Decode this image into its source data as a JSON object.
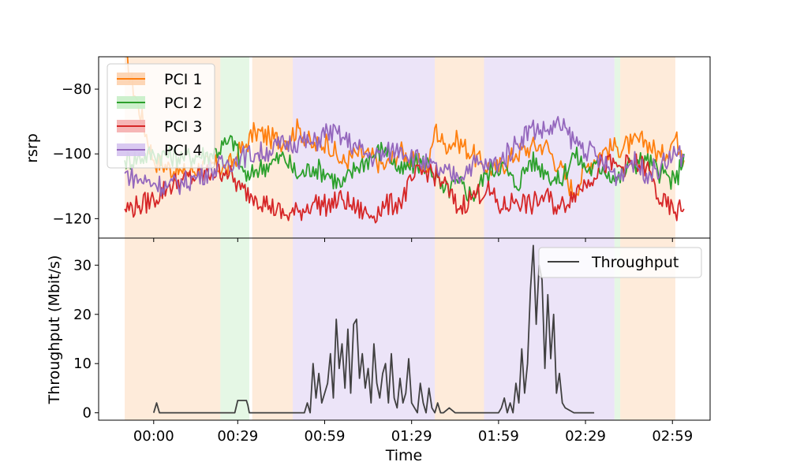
{
  "chart_data": {
    "type": "line",
    "xlabel": "Time",
    "x_tick_labels": [
      "00:00",
      "00:29",
      "00:59",
      "01:29",
      "01:59",
      "02:29",
      "02:59"
    ],
    "x_tick_seconds": [
      0,
      29,
      59,
      89,
      119,
      149,
      179
    ],
    "xlim_seconds": [
      -19,
      192
    ],
    "serving_cell_bands": [
      {
        "pci": "PCI 1",
        "start": -10,
        "end": 23
      },
      {
        "pci": "PCI 2",
        "start": 23,
        "end": 33
      },
      {
        "pci": "PCI 1",
        "start": 34,
        "end": 48
      },
      {
        "pci": "PCI 4",
        "start": 48,
        "end": 97
      },
      {
        "pci": "PCI 1",
        "start": 97,
        "end": 114
      },
      {
        "pci": "PCI 4",
        "start": 114,
        "end": 159
      },
      {
        "pci": "PCI 2",
        "start": 159,
        "end": 161
      },
      {
        "pci": "PCI 1",
        "start": 161,
        "end": 180
      }
    ],
    "top_panel": {
      "ylabel": "rsrp",
      "ylim": [
        -126,
        -70
      ],
      "yticks": [
        -80,
        -100,
        -120
      ],
      "legend_position": "upper-left",
      "series": [
        {
          "name": "PCI 1",
          "color": "#ff7f0e",
          "band_color": "#fdd2ae",
          "x": [
            -10,
            0,
            10,
            20,
            25,
            29,
            32,
            35,
            40,
            45,
            50,
            55,
            60,
            65,
            70,
            75,
            80,
            85,
            90,
            95,
            97,
            100,
            105,
            110,
            113,
            118,
            125,
            130,
            135,
            140,
            145,
            150,
            155,
            160,
            165,
            170,
            175,
            180,
            182,
            183
          ],
          "y": [
            -70,
            -102,
            -106,
            -103,
            -105,
            -100,
            -97,
            -93,
            -95,
            -96,
            -92,
            -98,
            -96,
            -103,
            -100,
            -101,
            -104,
            -99,
            -103,
            -104,
            -92,
            -97,
            -96,
            -100,
            -103,
            -105,
            -100,
            -98,
            -97,
            -104,
            -112,
            -103,
            -99,
            -98,
            -97,
            -96,
            -101,
            -95,
            -99,
            -102
          ]
        },
        {
          "name": "PCI 2",
          "color": "#2ca02c",
          "band_color": "#c6eec6",
          "x": [
            -10,
            0,
            10,
            20,
            25,
            28,
            30,
            33,
            35,
            40,
            45,
            50,
            55,
            60,
            65,
            70,
            75,
            80,
            85,
            90,
            95,
            100,
            105,
            110,
            115,
            120,
            125,
            130,
            135,
            140,
            145,
            150,
            155,
            160,
            165,
            170,
            175,
            180,
            183
          ],
          "y": [
            -102,
            -100,
            -101,
            -100,
            -97,
            -96,
            -104,
            -108,
            -105,
            -103,
            -101,
            -107,
            -104,
            -106,
            -110,
            -104,
            -101,
            -98,
            -106,
            -103,
            -103,
            -112,
            -109,
            -113,
            -106,
            -103,
            -110,
            -102,
            -105,
            -109,
            -100,
            -105,
            -104,
            -108,
            -103,
            -102,
            -106,
            -109,
            -100
          ]
        },
        {
          "name": "PCI 3",
          "color": "#d62728",
          "band_color": "#f5aeae",
          "x": [
            -10,
            -5,
            0,
            5,
            10,
            15,
            20,
            25,
            30,
            35,
            40,
            45,
            50,
            55,
            60,
            65,
            70,
            75,
            80,
            85,
            90,
            95,
            100,
            105,
            110,
            115,
            120,
            125,
            130,
            135,
            140,
            145,
            150,
            155,
            160,
            165,
            170,
            175,
            180,
            183
          ],
          "y": [
            -117,
            -116,
            -114,
            -110,
            -108,
            -107,
            -106,
            -105,
            -111,
            -113,
            -116,
            -119,
            -118,
            -115,
            -116,
            -114,
            -117,
            -119,
            -116,
            -115,
            -107,
            -105,
            -109,
            -117,
            -113,
            -111,
            -117,
            -114,
            -116,
            -113,
            -117,
            -112,
            -108,
            -103,
            -104,
            -103,
            -104,
            -115,
            -118,
            -117
          ]
        },
        {
          "name": "PCI 4",
          "color": "#9467bd",
          "band_color": "#d5c3ef",
          "x": [
            -10,
            -5,
            0,
            5,
            10,
            15,
            20,
            25,
            30,
            35,
            40,
            45,
            50,
            55,
            60,
            65,
            70,
            75,
            80,
            85,
            90,
            95,
            100,
            105,
            110,
            115,
            120,
            125,
            130,
            135,
            140,
            145,
            150,
            155,
            160,
            165,
            170,
            175,
            180,
            183
          ],
          "y": [
            -106,
            -108,
            -109,
            -110,
            -109,
            -107,
            -105,
            -103,
            -101,
            -100,
            -99,
            -97,
            -96,
            -97,
            -93,
            -95,
            -98,
            -101,
            -100,
            -98,
            -101,
            -104,
            -106,
            -107,
            -103,
            -104,
            -102,
            -97,
            -92,
            -93,
            -91,
            -96,
            -99,
            -103,
            -107,
            -102,
            -106,
            -104,
            -100,
            -101
          ]
        }
      ]
    },
    "bottom_panel": {
      "ylabel": "Throughput (Mbit/s)",
      "ylim": [
        -1.5,
        35.5
      ],
      "yticks": [
        0,
        10,
        20,
        30
      ],
      "legend_position": "upper-right",
      "series": [
        {
          "name": "Throughput",
          "color": "#404040",
          "x": [
            0,
            1,
            1.5,
            2,
            5,
            10,
            15,
            20,
            25,
            28,
            29,
            30,
            31,
            32,
            32.5,
            33,
            40,
            50,
            51,
            52,
            53,
            54,
            55,
            56,
            57,
            58,
            59,
            60,
            61,
            62,
            63,
            64,
            65,
            66,
            67,
            68,
            69,
            70,
            71,
            72,
            73,
            74,
            75,
            76,
            77,
            78,
            79,
            80,
            81,
            82,
            83,
            84,
            85,
            86,
            87,
            88,
            89,
            90,
            91,
            92,
            93,
            94,
            95,
            96,
            97,
            98,
            99,
            100,
            102,
            104,
            106,
            108,
            110,
            112,
            114,
            116,
            117,
            118,
            119,
            120,
            121,
            122,
            123,
            124,
            125,
            126,
            127,
            128,
            129,
            130,
            131,
            132,
            133,
            134,
            135,
            136,
            137,
            138,
            139,
            140,
            141,
            142,
            145,
            150,
            152
          ],
          "y": [
            0,
            2,
            1,
            0,
            0,
            0,
            0,
            0,
            0,
            0,
            2.5,
            2.5,
            2.5,
            2.5,
            1.5,
            0,
            0,
            0,
            0,
            0,
            2,
            0,
            10,
            3,
            8,
            2,
            4,
            6,
            12,
            3,
            19,
            9,
            14,
            5,
            17,
            4,
            18,
            19,
            7,
            12,
            5,
            9,
            2,
            14,
            6,
            3,
            8,
            10,
            2,
            12,
            3,
            1,
            7,
            2,
            4,
            11,
            2,
            1,
            0,
            6,
            2,
            0,
            5,
            1,
            0,
            2,
            0,
            0,
            1,
            0,
            0,
            0,
            0,
            0,
            0,
            0,
            0,
            0,
            0,
            1,
            3,
            0,
            2,
            0,
            6,
            2,
            13,
            4,
            10,
            25,
            34,
            18,
            30,
            27,
            9,
            24,
            11,
            20,
            4,
            8,
            2,
            1,
            0,
            0,
            0
          ]
        }
      ]
    }
  }
}
